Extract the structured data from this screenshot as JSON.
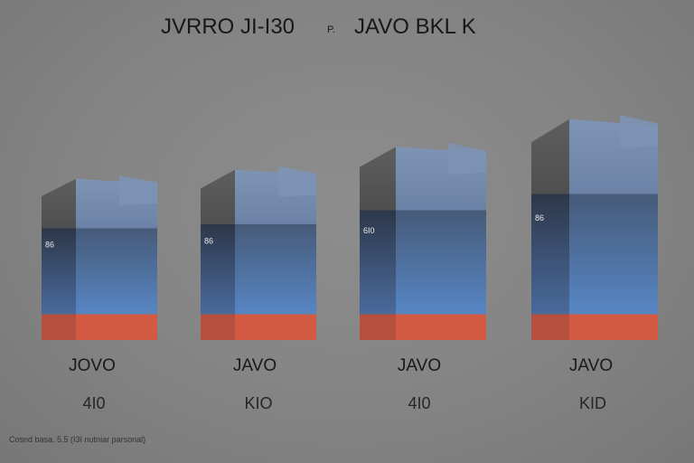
{
  "chart_data": {
    "type": "bar",
    "title": "JVRRO JI-I30",
    "title_separator": "P.",
    "subtitle": "JAVO BKL K",
    "categories": [
      "JOVO",
      "JAVO",
      "JAVO",
      "JAVO"
    ],
    "sublabels": [
      "4I0",
      "KIO",
      "4I0",
      "KID"
    ],
    "data_labels": [
      "86",
      "86",
      "6I0",
      "86"
    ],
    "series": [
      {
        "name": "base",
        "color": "#c9533d",
        "values": [
          30,
          30,
          30,
          30
        ]
      },
      {
        "name": "middle",
        "color": "#4f6f9e",
        "values": [
          100,
          105,
          121,
          140
        ]
      },
      {
        "name": "top",
        "color": "#6a6a6a",
        "values": [
          50,
          55,
          65,
          77
        ]
      }
    ],
    "ylim": [
      0,
      260
    ],
    "xlabel": "",
    "ylabel": "",
    "grid": false,
    "legend": "none"
  },
  "footnote": "Cosnd basa. 5.5 (I3I nutniar parsonal)"
}
